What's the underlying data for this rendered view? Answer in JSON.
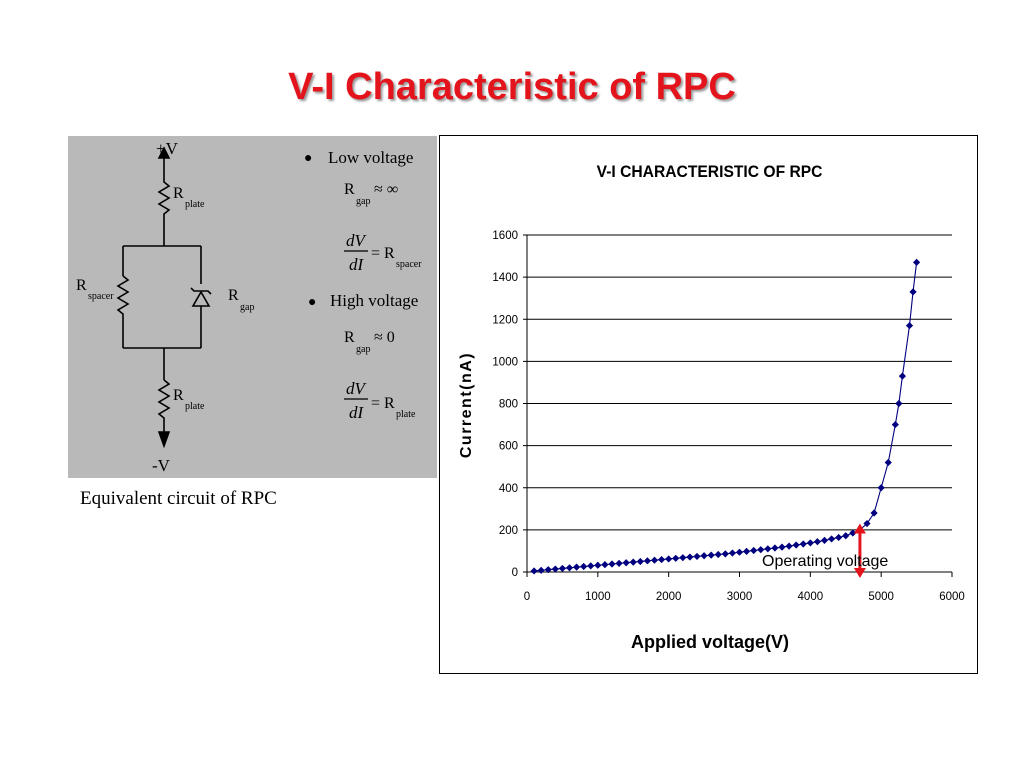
{
  "slide": {
    "title": "V-I Characteristic of RPC",
    "title_color": "#e3141b"
  },
  "circuit": {
    "caption": "Equivalent circuit of  RPC",
    "labels": {
      "pos_v": "+V",
      "neg_v": "-V",
      "r": "R",
      "plate": "plate",
      "spacer": "spacer",
      "gap": "gap"
    },
    "notes": [
      {
        "bullet": "●",
        "heading": "Low voltage",
        "approx": "≈ ∞",
        "dv": "dV",
        "di": "dI",
        "equals": "= R",
        "sub": "spacer"
      },
      {
        "bullet": "●",
        "heading": "High voltage",
        "approx": "≈ 0",
        "dv": "dV",
        "di": "dI",
        "equals": "= R",
        "sub": "plate"
      }
    ],
    "panel_color": "#b9b9b9"
  },
  "chart_data": {
    "type": "line",
    "title": "V-I CHARACTERISTIC OF RPC",
    "xlabel": "Applied voltage(V)",
    "ylabel": "Current(nA)",
    "xlim": [
      0,
      6000
    ],
    "ylim": [
      0,
      1600
    ],
    "x_ticks": [
      0,
      1000,
      2000,
      3000,
      4000,
      5000,
      6000
    ],
    "y_ticks": [
      0,
      200,
      400,
      600,
      800,
      1000,
      1200,
      1400,
      1600
    ],
    "grid": "horizontal",
    "series_color": "#00007f",
    "marker": "diamond",
    "x": [
      100,
      200,
      300,
      400,
      500,
      600,
      700,
      800,
      900,
      1000,
      1100,
      1200,
      1300,
      1400,
      1500,
      1600,
      1700,
      1800,
      1900,
      2000,
      2100,
      2200,
      2300,
      2400,
      2500,
      2600,
      2700,
      2800,
      2900,
      3000,
      3100,
      3200,
      3300,
      3400,
      3500,
      3600,
      3700,
      3800,
      3900,
      4000,
      4100,
      4200,
      4300,
      4400,
      4500,
      4600,
      4700,
      4800,
      4900,
      5000,
      5100,
      5200,
      5250,
      5300,
      5400,
      5450,
      5500
    ],
    "y": [
      5,
      8,
      11,
      14,
      17,
      20,
      23,
      26,
      29,
      32,
      35,
      38,
      41,
      44,
      47,
      50,
      53,
      56,
      59,
      62,
      65,
      68,
      71,
      74,
      77,
      80,
      83,
      86,
      90,
      94,
      98,
      102,
      106,
      110,
      114,
      118,
      123,
      128,
      133,
      138,
      144,
      150,
      157,
      164,
      172,
      185,
      200,
      230,
      280,
      400,
      520,
      700,
      800,
      930,
      1170,
      1330,
      1470
    ],
    "annotation": {
      "text": "Operating voltage",
      "x": 4700,
      "y_from": 230,
      "y_to": 0,
      "color": "#e3141b"
    }
  }
}
